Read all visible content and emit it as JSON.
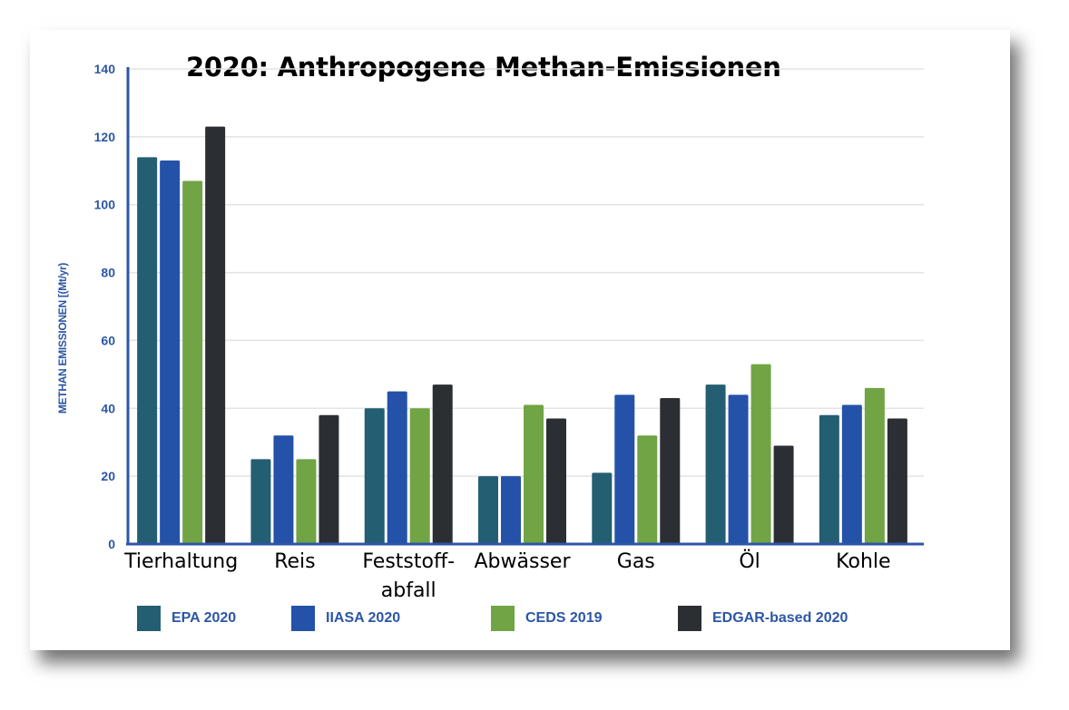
{
  "chart_data": {
    "type": "bar",
    "title": "2020:  Anthropogene Methan-Emissionen",
    "ylabel": "METHAN EMISSIONEN [(Mt/yr)",
    "xlabel": "",
    "ylim": [
      0,
      140
    ],
    "yticks": [
      0,
      20,
      40,
      60,
      80,
      100,
      120,
      140
    ],
    "grid": true,
    "legend_position": "bottom",
    "categories": [
      "Tierhaltung",
      "Reis",
      "Feststoff-\nabfall",
      "Abwässer",
      "Gas",
      "Öl",
      "Kohle"
    ],
    "series": [
      {
        "name": "EPA 2020",
        "color": "#245e72",
        "values": [
          114,
          25,
          40,
          20,
          21,
          47,
          38
        ]
      },
      {
        "name": "IIASA 2020",
        "color": "#2452a8",
        "values": [
          113,
          32,
          45,
          20,
          44,
          44,
          41
        ]
      },
      {
        "name": "CEDS 2019",
        "color": "#71a444",
        "values": [
          107,
          25,
          40,
          41,
          32,
          53,
          46
        ]
      },
      {
        "name": "EDGAR-based 2020",
        "color": "#2b2f33",
        "values": [
          123,
          38,
          47,
          37,
          43,
          29,
          37
        ]
      }
    ],
    "axis_color": "#2c56a6",
    "grid_color": "#e3e3e3"
  }
}
